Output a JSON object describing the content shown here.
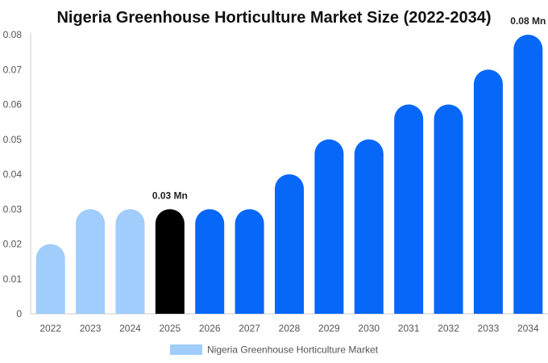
{
  "chart_data": {
    "type": "bar",
    "title": "Nigeria Greenhouse Horticulture Market Size (2022-2034)",
    "xlabel": "",
    "ylabel": "",
    "categories": [
      "2022",
      "2023",
      "2024",
      "2025",
      "2026",
      "2027",
      "2028",
      "2029",
      "2030",
      "2031",
      "2032",
      "2033",
      "2034"
    ],
    "series": [
      {
        "name": "Nigeria Greenhouse Horticulture Market",
        "values": [
          0.02,
          0.03,
          0.03,
          0.03,
          0.03,
          0.03,
          0.04,
          0.05,
          0.05,
          0.06,
          0.06,
          0.07,
          0.08
        ]
      }
    ],
    "ylim": [
      0,
      0.08
    ],
    "yticks": [
      "0",
      "0.01",
      "0.02",
      "0.03",
      "0.04",
      "0.05",
      "0.06",
      "0.07",
      "0.08"
    ],
    "yticks_values": [
      0,
      0.01,
      0.02,
      0.03,
      0.04,
      0.05,
      0.06,
      0.07,
      0.08
    ],
    "data_labels": [
      {
        "category": "2025",
        "text": "0.03 Mn"
      },
      {
        "category": "2034",
        "text": "0.08 Mn"
      }
    ],
    "bar_colors": {
      "historic": "#a0cdfb",
      "base_year": "#000000",
      "forecast": "#0767f9"
    },
    "historic_categories": [
      "2022",
      "2023",
      "2024"
    ],
    "base_year_category": "2025",
    "grid": false,
    "legend": {
      "position": "bottom",
      "label": "Nigeria Greenhouse Horticulture Market",
      "color": "#a0cdfb"
    }
  }
}
